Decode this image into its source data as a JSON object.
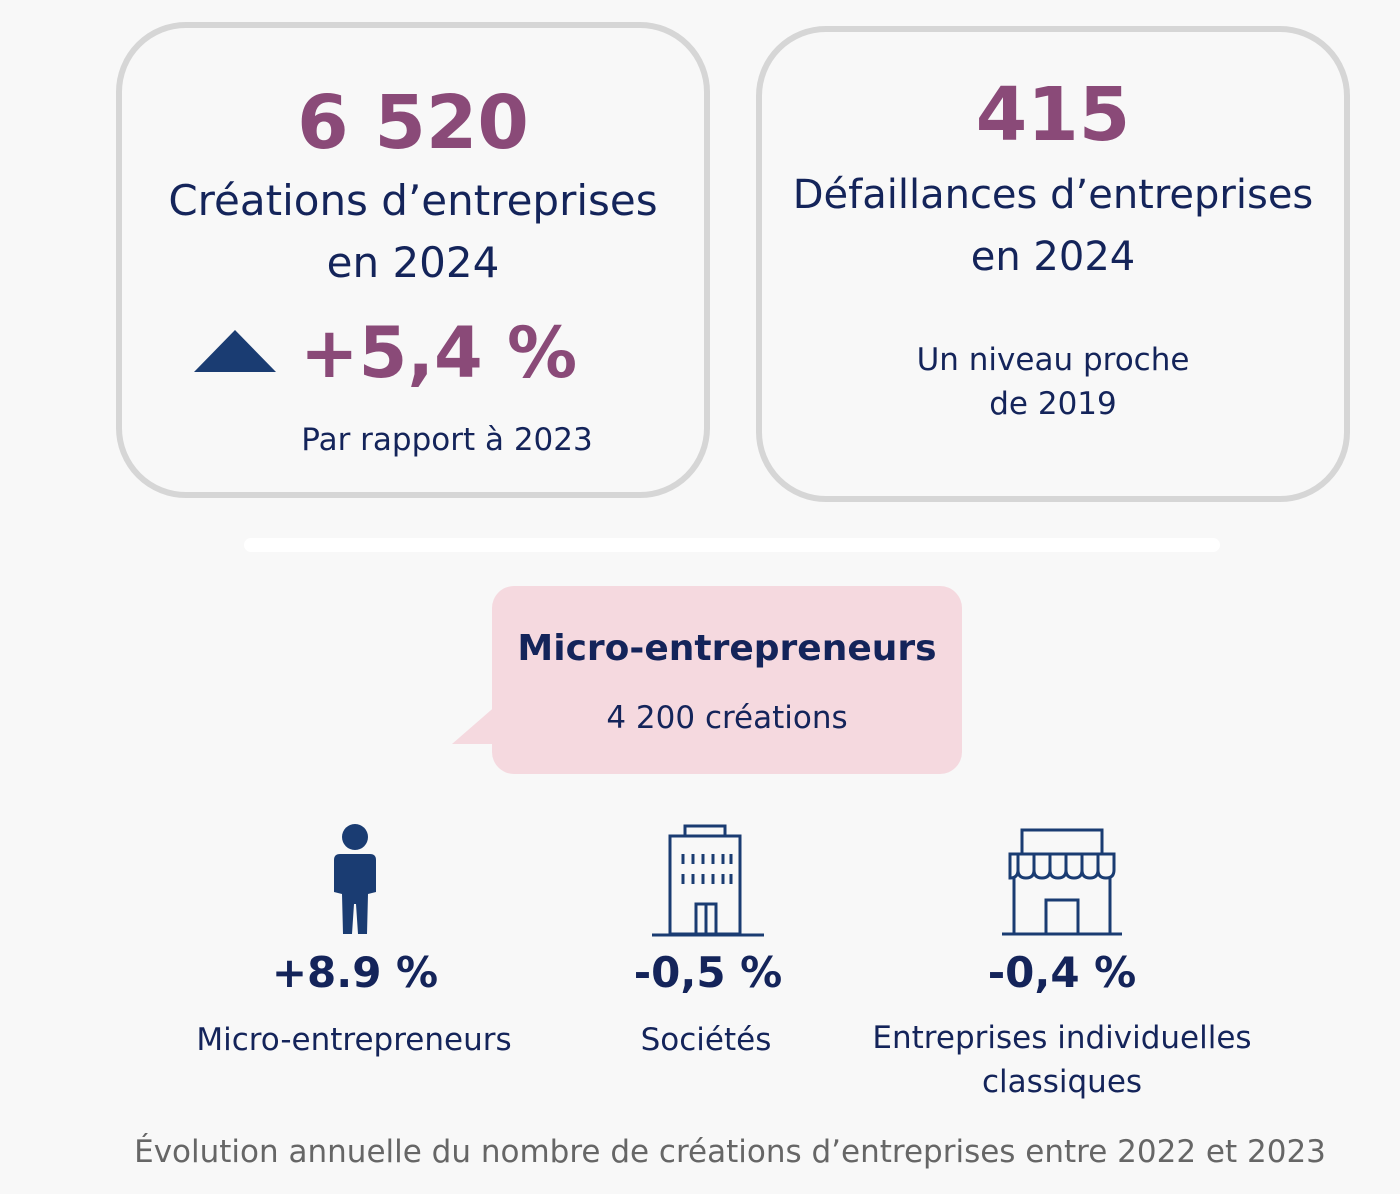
{
  "creations": {
    "value": "6 520",
    "label_line1": "Créations d’entreprises",
    "label_line2": "en 2024",
    "change": "+5,4 %",
    "change_note": "Par rapport à 2023"
  },
  "failures": {
    "value": "415",
    "label_line1": "Défaillances d’entreprises",
    "label_line2": "en 2024",
    "note_line1": "Un niveau proche",
    "note_line2": "de 2019"
  },
  "callout": {
    "title": "Micro-entrepreneurs",
    "subtitle": "4 200 créations"
  },
  "categories": [
    {
      "icon": "person-icon",
      "change": "+8.9 %",
      "label_line1": "Micro-entrepreneurs",
      "label_line2": ""
    },
    {
      "icon": "building-icon",
      "change": "-0,5 %",
      "label_line1": "Sociétés",
      "label_line2": ""
    },
    {
      "icon": "shop-icon",
      "change": "-0,4 %",
      "label_line1": "Entreprises individuelles",
      "label_line2": "classiques"
    }
  ],
  "footer": "Évolution annuelle du nombre de créations d’entreprises entre 2022 et 2023",
  "colors": {
    "accent": "#8a4a78",
    "navy": "#14245a",
    "icon_blue": "#1a3c72",
    "callout_bg": "#f5d9df",
    "card_border": "#d6d6d6"
  }
}
